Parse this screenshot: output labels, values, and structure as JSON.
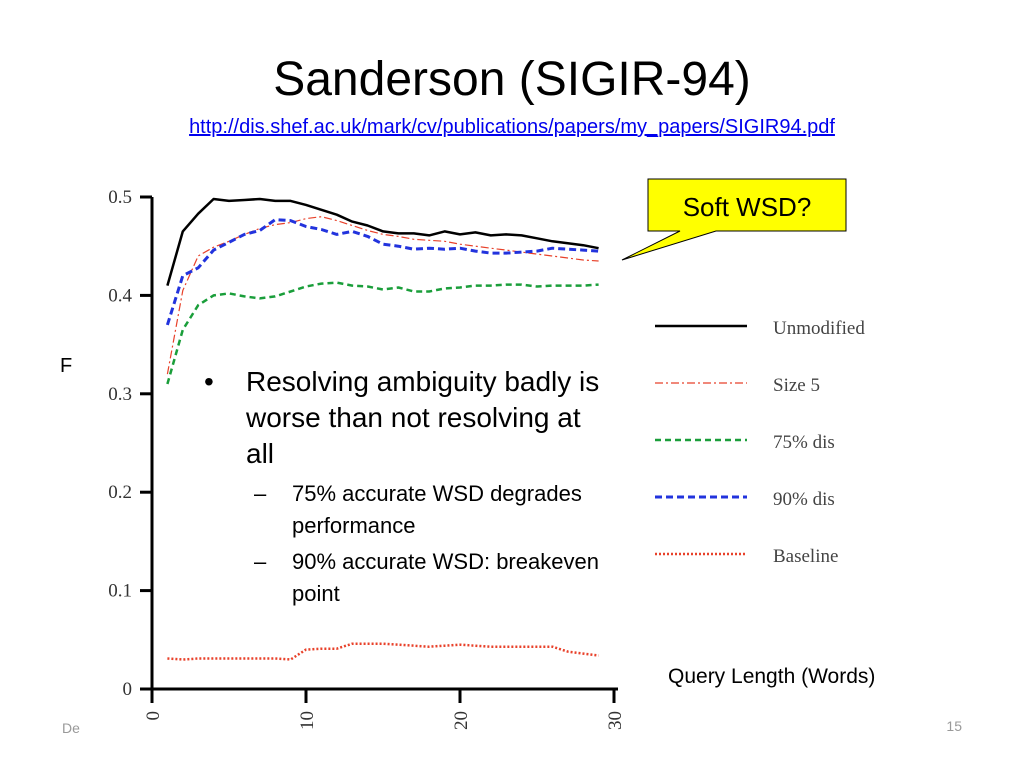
{
  "slide": {
    "title": "Sanderson (SIGIR-94)",
    "link": "http://dis.shef.ac.uk/mark/cv/publications/papers/my_papers/SIGIR94.pdf",
    "footer_left": "De",
    "slide_number": "15"
  },
  "callout": {
    "text": "Soft WSD?",
    "fill": "#ffff00"
  },
  "bullets": [
    {
      "text": "Resolving ambiguity badly is worse than not resolving at all",
      "subs": [
        "75% accurate WSD degrades performance",
        "90% accurate WSD: breakeven point"
      ]
    }
  ],
  "chart_data": {
    "type": "line",
    "ylabel": "F",
    "xlabel": "Query Length (Words)",
    "x": [
      1,
      2,
      3,
      4,
      5,
      6,
      7,
      8,
      9,
      10,
      11,
      12,
      13,
      14,
      15,
      16,
      17,
      18,
      19,
      20,
      21,
      22,
      23,
      24,
      25,
      26,
      27,
      28,
      29
    ],
    "xlim": [
      0,
      30
    ],
    "ylim": [
      0,
      0.5
    ],
    "x_ticks": [
      "0",
      "10",
      "20",
      "30"
    ],
    "y_ticks": [
      "0",
      "0.1",
      "0.2",
      "0.3",
      "0.4",
      "0.5"
    ],
    "legend_position": "right",
    "series": [
      {
        "name": "Unmodified",
        "color": "#000000",
        "style": "solid",
        "values": [
          0.41,
          0.465,
          0.483,
          0.498,
          0.496,
          0.497,
          0.498,
          0.496,
          0.496,
          0.492,
          0.487,
          0.482,
          0.475,
          0.471,
          0.465,
          0.463,
          0.463,
          0.461,
          0.465,
          0.462,
          0.464,
          0.461,
          0.462,
          0.461,
          0.458,
          0.455,
          0.453,
          0.451,
          0.448
        ]
      },
      {
        "name": "Size 5",
        "color": "#e8412a",
        "style": "dashdot",
        "values": [
          0.32,
          0.405,
          0.44,
          0.449,
          0.455,
          0.462,
          0.468,
          0.472,
          0.474,
          0.478,
          0.48,
          0.476,
          0.471,
          0.466,
          0.462,
          0.46,
          0.457,
          0.456,
          0.455,
          0.452,
          0.45,
          0.448,
          0.446,
          0.444,
          0.442,
          0.44,
          0.438,
          0.436,
          0.435
        ]
      },
      {
        "name": "75% dis",
        "color": "#1a9e3a",
        "style": "dashed",
        "values": [
          0.31,
          0.365,
          0.39,
          0.4,
          0.402,
          0.399,
          0.397,
          0.399,
          0.404,
          0.409,
          0.412,
          0.413,
          0.41,
          0.409,
          0.406,
          0.408,
          0.404,
          0.404,
          0.407,
          0.408,
          0.41,
          0.41,
          0.411,
          0.411,
          0.409,
          0.41,
          0.41,
          0.41,
          0.411
        ]
      },
      {
        "name": "90% dis",
        "color": "#2233dd",
        "style": "dashed-thick",
        "values": [
          0.37,
          0.42,
          0.428,
          0.446,
          0.454,
          0.462,
          0.466,
          0.477,
          0.476,
          0.47,
          0.467,
          0.462,
          0.465,
          0.46,
          0.452,
          0.45,
          0.447,
          0.448,
          0.447,
          0.448,
          0.445,
          0.443,
          0.443,
          0.444,
          0.445,
          0.448,
          0.447,
          0.446,
          0.445
        ]
      },
      {
        "name": "Baseline",
        "color": "#e8412a",
        "style": "dotted",
        "values": [
          0.031,
          0.03,
          0.031,
          0.031,
          0.031,
          0.031,
          0.031,
          0.031,
          0.03,
          0.04,
          0.041,
          0.041,
          0.046,
          0.046,
          0.046,
          0.045,
          0.044,
          0.043,
          0.044,
          0.045,
          0.044,
          0.043,
          0.043,
          0.043,
          0.043,
          0.043,
          0.038,
          0.036,
          0.034
        ]
      }
    ]
  }
}
